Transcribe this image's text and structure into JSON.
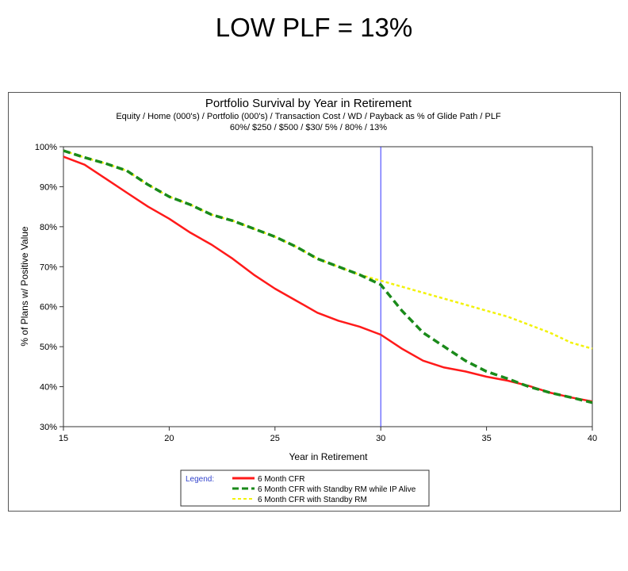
{
  "slide_title": "LOW PLF = 13%",
  "chart_data": {
    "type": "line",
    "title": "Portfolio Survival by Year in Retirement",
    "subtitle_line1": "Equity / Home (000's) / Portfolio (000's) / Transaction Cost / WD / Payback as % of Glide Path / PLF",
    "subtitle_line2": "60%/ $250 / $500 / $30/ 5% / 80% / 13%",
    "xlabel": "Year in Retirement",
    "ylabel": "% of Plans w/ Positive Value",
    "xlim": [
      15,
      40
    ],
    "ylim": [
      30,
      100
    ],
    "x_ticks": [
      "15",
      "20",
      "25",
      "30",
      "35",
      "40"
    ],
    "y_ticks": [
      "30%",
      "40%",
      "50%",
      "60%",
      "70%",
      "80%",
      "90%",
      "100%"
    ],
    "reference_line_x": 30,
    "legend_title": "Legend:",
    "legend_placement": "bottom",
    "x": [
      15,
      16,
      17,
      18,
      19,
      20,
      21,
      22,
      23,
      24,
      25,
      26,
      27,
      28,
      29,
      30,
      31,
      32,
      33,
      34,
      35,
      36,
      37,
      38,
      39,
      40
    ],
    "series": [
      {
        "name": "6 Month CFR",
        "color": "#ff1a1a",
        "style": "solid",
        "values": [
          97.5,
          95.5,
          92,
          88.5,
          85,
          82,
          78.5,
          75.5,
          72,
          68,
          64.5,
          61.5,
          58.5,
          56.5,
          55,
          53,
          49.5,
          46.5,
          44.8,
          43.8,
          42.5,
          41.5,
          40.2,
          38.5,
          37.3,
          36.3
        ]
      },
      {
        "name": "6 Month CFR with Standby RM while IP Alive",
        "color": "#1a8a1a",
        "style": "dashed",
        "values": [
          99,
          97.3,
          95.8,
          94,
          90.5,
          87.5,
          85.5,
          83,
          81.5,
          79.5,
          77.5,
          75,
          72,
          70,
          68,
          65.5,
          59,
          53.5,
          50,
          46.5,
          43.8,
          42,
          40,
          38.5,
          37.3,
          36
        ]
      },
      {
        "name": "6 Month CFR with Standby RM",
        "color": "#f2f20a",
        "style": "dotted",
        "values": [
          99,
          97.3,
          95.8,
          94,
          90.5,
          87.5,
          85.5,
          83,
          81.5,
          79.5,
          77.5,
          75,
          72,
          70,
          68,
          66.5,
          65,
          63.5,
          62,
          60.5,
          59,
          57.5,
          55.5,
          53.5,
          51,
          49.5
        ]
      }
    ]
  }
}
